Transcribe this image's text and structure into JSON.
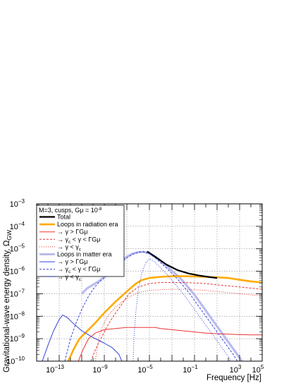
{
  "chart_data": {
    "type": "line",
    "xlabel": "Frequency [Hz]",
    "ylabel": "Gravitational-wave energy density, Ω",
    "ylabel_sub": "GW",
    "xscale": "log",
    "yscale": "log",
    "xlim": [
      1e-15,
      100000.0
    ],
    "ylim": [
      1e-10,
      0.001
    ],
    "grid": true,
    "legend_position": "top-left",
    "legend_header": "M=3, cusps, Gμ = 10",
    "legend_header_exp": "-8",
    "x_tick_labels": [
      {
        "base": "10",
        "exp": "−13",
        "value": 1e-13
      },
      {
        "base": "10",
        "exp": "−9",
        "value": 1e-09
      },
      {
        "base": "10",
        "exp": "−5",
        "value": 1e-05
      },
      {
        "base": "10",
        "exp": "−1",
        "value": 0.1
      },
      {
        "base": "10",
        "exp": "3",
        "value": 1000.0
      },
      {
        "base": "10",
        "exp": "5",
        "value": 100000.0
      }
    ],
    "y_tick_labels": [
      {
        "base": "10",
        "exp": "−10",
        "value": 1e-10
      },
      {
        "base": "10",
        "exp": "−9",
        "value": 1e-09
      },
      {
        "base": "10",
        "exp": "−8",
        "value": 1e-08
      },
      {
        "base": "10",
        "exp": "−7",
        "value": 1e-07
      },
      {
        "base": "10",
        "exp": "−6",
        "value": 1e-06
      },
      {
        "base": "10",
        "exp": "−5",
        "value": 1e-05
      },
      {
        "base": "10",
        "exp": "−4",
        "value": 0.0001
      },
      {
        "base": "10",
        "exp": "−3",
        "value": 0.001
      }
    ],
    "series": [
      {
        "name": "Total",
        "color": "#000000",
        "width": 2.2,
        "dash": "",
        "points": [
          [
            -5.2,
            -5.12
          ],
          [
            -4.5,
            -5.35
          ],
          [
            -3.5,
            -5.7
          ],
          [
            -2.5,
            -5.95
          ],
          [
            -1.5,
            -6.1
          ],
          [
            -0.5,
            -6.2
          ],
          [
            0.5,
            -6.27
          ],
          [
            1.0,
            -6.3
          ]
        ]
      },
      {
        "name": "Loops in radiation era",
        "color": "#ffaa00",
        "width": 2.6,
        "dash": "",
        "points": [
          [
            -12.2,
            -10.0
          ],
          [
            -11.7,
            -9.45
          ],
          [
            -11.2,
            -9.0
          ],
          [
            -10.5,
            -8.65
          ],
          [
            -9.8,
            -8.3
          ],
          [
            -9.0,
            -7.85
          ],
          [
            -8.0,
            -7.35
          ],
          [
            -7.0,
            -6.9
          ],
          [
            -6.2,
            -6.55
          ],
          [
            -5.7,
            -6.4
          ],
          [
            -5.0,
            -6.3
          ],
          [
            -4.0,
            -6.25
          ],
          [
            -3.0,
            -6.22
          ],
          [
            -2.0,
            -6.22
          ],
          [
            -1.0,
            -6.23
          ],
          [
            0.0,
            -6.25
          ],
          [
            1.0,
            -6.27
          ],
          [
            2.0,
            -6.3
          ],
          [
            3.0,
            -6.38
          ],
          [
            4.0,
            -6.45
          ],
          [
            5.0,
            -6.5
          ]
        ]
      },
      {
        "name": "→ γ > ΓGμ",
        "color": "#ee3333",
        "width": 1,
        "dash": "",
        "points": [
          [
            -11.3,
            -10.0
          ],
          [
            -10.9,
            -9.5
          ],
          [
            -10.4,
            -9.0
          ],
          [
            -9.8,
            -8.75
          ],
          [
            -9.0,
            -8.6
          ],
          [
            -8.0,
            -8.55
          ],
          [
            -7.0,
            -8.5
          ],
          [
            -6.0,
            -8.5
          ],
          [
            -5.0,
            -8.5
          ],
          [
            -4.5,
            -8.5
          ],
          [
            -4.0,
            -8.55
          ],
          [
            -3.0,
            -8.6
          ],
          [
            -2.0,
            -8.65
          ],
          [
            -1.0,
            -8.7
          ],
          [
            0.0,
            -8.75
          ],
          [
            1.0,
            -8.78
          ],
          [
            2.0,
            -8.8
          ],
          [
            3.0,
            -8.82
          ],
          [
            4.0,
            -8.83
          ],
          [
            5.0,
            -8.83
          ]
        ]
      },
      {
        "name": "→ γ",
        "name_sub": "c",
        "name_rest": " < γ < ΓGμ",
        "color": "#ee3333",
        "width": 1,
        "dash": "3,2",
        "points": [
          [
            -10.2,
            -10.0
          ],
          [
            -9.8,
            -9.5
          ],
          [
            -9.3,
            -9.0
          ],
          [
            -8.8,
            -8.5
          ],
          [
            -8.2,
            -8.0
          ],
          [
            -7.5,
            -7.5
          ],
          [
            -6.8,
            -7.0
          ],
          [
            -6.0,
            -6.7
          ],
          [
            -5.0,
            -6.55
          ],
          [
            -4.0,
            -6.5
          ],
          [
            -3.0,
            -6.5
          ],
          [
            -2.0,
            -6.5
          ],
          [
            -1.0,
            -6.52
          ],
          [
            0.0,
            -6.55
          ],
          [
            1.0,
            -6.6
          ],
          [
            2.0,
            -6.65
          ],
          [
            3.0,
            -6.7
          ],
          [
            4.0,
            -6.75
          ],
          [
            5.0,
            -6.8
          ]
        ]
      },
      {
        "name": "→ γ < γ",
        "name_sub": "c",
        "name_rest": "",
        "color": "#ee3333",
        "width": 1,
        "dash": "1,2",
        "points": [
          [
            -9.8,
            -10.0
          ],
          [
            -9.6,
            -9.3
          ],
          [
            -9.4,
            -8.8
          ],
          [
            -9.1,
            -8.4
          ],
          [
            -8.7,
            -8.0
          ],
          [
            -8.0,
            -7.6
          ],
          [
            -7.0,
            -7.2
          ],
          [
            -6.0,
            -6.95
          ],
          [
            -5.0,
            -6.85
          ],
          [
            -4.0,
            -6.82
          ],
          [
            -3.0,
            -6.8
          ],
          [
            -2.0,
            -6.8
          ],
          [
            -1.0,
            -6.82
          ],
          [
            0.0,
            -6.85
          ],
          [
            1.0,
            -6.9
          ],
          [
            2.0,
            -6.95
          ],
          [
            3.0,
            -7.0
          ],
          [
            4.0,
            -7.05
          ],
          [
            5.0,
            -7.1
          ]
        ]
      },
      {
        "name": "Loops in matter era",
        "color": "#bbbbee",
        "width": 3.2,
        "dash": "",
        "points": [
          [
            -11.0,
            -7.0
          ],
          [
            -10.5,
            -6.75
          ],
          [
            -10.0,
            -6.6
          ],
          [
            -9.5,
            -6.45
          ],
          [
            -9.0,
            -6.25
          ],
          [
            -8.5,
            -6.05
          ],
          [
            -8.0,
            -5.8
          ],
          [
            -7.5,
            -5.55
          ],
          [
            -7.0,
            -5.35
          ],
          [
            -6.5,
            -5.22
          ],
          [
            -6.0,
            -5.15
          ],
          [
            -5.5,
            -5.14
          ],
          [
            -5.0,
            -5.2
          ],
          [
            -4.5,
            -5.35
          ],
          [
            -4.0,
            -5.55
          ],
          [
            -3.5,
            -5.75
          ],
          [
            -3.0,
            -5.98
          ],
          [
            -2.5,
            -6.2
          ],
          [
            -2.0,
            -6.45
          ],
          [
            -1.5,
            -6.75
          ],
          [
            -1.0,
            -7.05
          ],
          [
            -0.5,
            -7.4
          ],
          [
            0.0,
            -7.75
          ],
          [
            0.5,
            -8.1
          ],
          [
            1.0,
            -8.45
          ],
          [
            1.5,
            -8.8
          ],
          [
            2.0,
            -9.15
          ],
          [
            2.5,
            -9.5
          ],
          [
            3.0,
            -9.85
          ],
          [
            3.2,
            -10.0
          ]
        ]
      },
      {
        "name": "→ γ > ΓGμ",
        "color": "#3344dd",
        "width": 1,
        "dash": "",
        "points": [
          [
            -14.5,
            -10.0
          ],
          [
            -14.0,
            -9.3
          ],
          [
            -13.5,
            -8.65
          ],
          [
            -13.0,
            -8.15
          ],
          [
            -12.7,
            -7.95
          ],
          [
            -12.3,
            -8.05
          ],
          [
            -11.8,
            -8.3
          ],
          [
            -11.0,
            -8.65
          ],
          [
            -10.0,
            -8.95
          ],
          [
            -9.0,
            -9.2
          ],
          [
            -8.3,
            -9.4
          ],
          [
            -7.7,
            -9.7
          ],
          [
            -7.45,
            -10.0
          ]
        ]
      },
      {
        "name": "→ γ",
        "name_sub": "c",
        "name_rest": " < γ < ΓGμ",
        "color": "#3344dd",
        "width": 1,
        "dash": "3,2",
        "points": [
          [
            -12.5,
            -10.0
          ],
          [
            -12.0,
            -9.0
          ],
          [
            -11.5,
            -8.3
          ],
          [
            -11.0,
            -7.7
          ],
          [
            -10.5,
            -7.2
          ],
          [
            -10.0,
            -6.8
          ],
          [
            -9.5,
            -6.5
          ],
          [
            -9.0,
            -6.3
          ],
          [
            -8.5,
            -6.1
          ],
          [
            -8.0,
            -5.85
          ],
          [
            -7.5,
            -5.6
          ],
          [
            -7.0,
            -5.4
          ],
          [
            -6.5,
            -5.25
          ],
          [
            -6.0,
            -5.15
          ],
          [
            -5.5,
            -5.13
          ],
          [
            -5.0,
            -5.22
          ],
          [
            -4.5,
            -5.4
          ],
          [
            -4.0,
            -5.62
          ],
          [
            -3.5,
            -5.85
          ],
          [
            -3.0,
            -6.1
          ],
          [
            -2.5,
            -6.35
          ],
          [
            -2.0,
            -6.65
          ],
          [
            -1.5,
            -6.95
          ],
          [
            -1.0,
            -7.3
          ],
          [
            -0.5,
            -7.65
          ],
          [
            0.0,
            -8.0
          ],
          [
            0.5,
            -8.35
          ],
          [
            1.0,
            -8.7
          ],
          [
            1.5,
            -9.05
          ],
          [
            2.0,
            -9.4
          ],
          [
            2.5,
            -9.75
          ],
          [
            2.8,
            -10.0
          ]
        ]
      },
      {
        "name": "→ γ < γ",
        "name_sub": "c",
        "name_rest": "",
        "color": "#3344dd",
        "width": 1,
        "dash": "1,2",
        "points": [
          [
            -6.45,
            -10.0
          ],
          [
            -6.35,
            -8.8
          ],
          [
            -6.2,
            -7.8
          ],
          [
            -6.0,
            -6.9
          ],
          [
            -5.7,
            -6.1
          ],
          [
            -5.3,
            -5.6
          ],
          [
            -5.0,
            -5.45
          ],
          [
            -4.6,
            -5.55
          ],
          [
            -4.0,
            -5.85
          ],
          [
            -3.5,
            -6.1
          ],
          [
            -3.0,
            -6.4
          ],
          [
            -2.5,
            -6.7
          ],
          [
            -2.0,
            -7.0
          ],
          [
            -1.5,
            -7.35
          ],
          [
            -1.0,
            -7.7
          ],
          [
            -0.5,
            -8.05
          ],
          [
            0.0,
            -8.4
          ],
          [
            0.5,
            -8.75
          ],
          [
            1.0,
            -9.1
          ],
          [
            1.5,
            -9.45
          ],
          [
            2.0,
            -9.8
          ],
          [
            2.2,
            -10.0
          ]
        ]
      }
    ]
  }
}
